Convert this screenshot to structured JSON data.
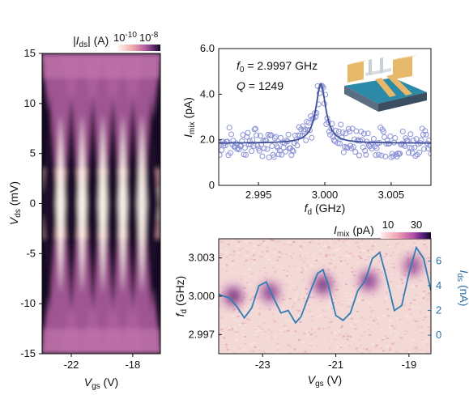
{
  "chart_data": [
    {
      "type": "heatmap",
      "panel": "left",
      "xlabel_main": "V",
      "xlabel_sub": "gs",
      "xlabel_unit": " (V)",
      "ylabel_main": "V",
      "ylabel_sub": "ds",
      "ylabel_unit": " (mV)",
      "xlim": [
        -23.9,
        -16.2
      ],
      "ylim": [
        -15,
        15
      ],
      "xticks": [
        "-22",
        "-18"
      ],
      "xtick_values": [
        -22,
        -18
      ],
      "yticks": [
        "15",
        "10",
        "5",
        "0",
        "-5",
        "-10",
        "-15"
      ],
      "ytick_values": [
        15,
        10,
        5,
        0,
        -5,
        -10,
        -15
      ],
      "colorbar": {
        "label_pre": "|I",
        "label_sub": "ds",
        "label_post": "| (A)",
        "tick_low": "10",
        "tick_low_exp": "-10",
        "tick_high": "10",
        "tick_high_exp": "-8",
        "scale": "log"
      },
      "diamond_centers_vgs": [
        -23.4,
        -22.0,
        -20.6,
        -19.3,
        -18.0,
        -16.8
      ],
      "diamond_half_height_mV": 11
    },
    {
      "type": "scatter",
      "panel": "top-right",
      "xlabel_main": "f",
      "xlabel_sub": "d",
      "xlabel_unit": " (GHz)",
      "ylabel_main": "I",
      "ylabel_sub": "mix",
      "ylabel_unit": " (pA)",
      "xlim": [
        2.992,
        3.008
      ],
      "ylim": [
        0,
        6
      ],
      "xticks": [
        "2.995",
        "3.000",
        "3.005"
      ],
      "xtick_values": [
        2.995,
        3.0,
        3.005
      ],
      "yticks": [
        "6.0",
        "4.0",
        "2.0",
        "0"
      ],
      "ytick_values": [
        6,
        4,
        2,
        0
      ],
      "annotation_f0": "f",
      "annotation_f0_sub": "0",
      "annotation_f0_val": " = 2.9997 GHz",
      "annotation_q": "Q",
      "annotation_q_val": " = 1249",
      "fit": {
        "f0": 2.9997,
        "baseline": 1.85,
        "peak": 2.6,
        "gamma": 0.00045
      },
      "series": [
        {
          "values_note": "open-circle data points scattered around Lorentzian fit"
        }
      ]
    },
    {
      "type": "heatmap",
      "panel": "bottom-right",
      "xlabel_main": "V",
      "xlabel_sub": "gs",
      "xlabel_unit": " (V)",
      "ylabel_main": "f",
      "ylabel_sub": "d",
      "ylabel_unit": " (GHz)",
      "y2label_main": "I",
      "y2label_sub": "ds",
      "y2label_unit": " (nA)",
      "xlim": [
        -24.2,
        -18.4
      ],
      "ylim": [
        2.9955,
        3.0045
      ],
      "y2lim": [
        -1.5,
        7.8
      ],
      "xticks": [
        "-23",
        "-21",
        "-19"
      ],
      "xtick_values": [
        -23,
        -21,
        -19
      ],
      "yticks": [
        "3.003",
        "3.000",
        "2.997"
      ],
      "ytick_values": [
        3.003,
        3.0,
        2.997
      ],
      "y2ticks": [
        "6",
        "4",
        "2",
        "0"
      ],
      "y2tick_values": [
        6,
        4,
        2,
        0
      ],
      "colorbar": {
        "label_main": "I",
        "label_sub": "mix",
        "label_unit": " (pA)",
        "tick_low": "10",
        "tick_high": "30"
      },
      "blobs": [
        {
          "vgs": -23.8,
          "fd": 3.0,
          "strength": 1.0
        },
        {
          "vgs": -22.8,
          "fd": 3.0003,
          "strength": 0.75
        },
        {
          "vgs": -21.35,
          "fd": 3.0009,
          "strength": 0.95
        },
        {
          "vgs": -20.1,
          "fd": 3.0012,
          "strength": 0.8
        },
        {
          "vgs": -18.9,
          "fd": 3.0024,
          "strength": 0.55
        }
      ],
      "ids_curve": {
        "vgs": [
          -24.2,
          -23.9,
          -23.7,
          -23.5,
          -23.3,
          -23.1,
          -22.9,
          -22.7,
          -22.5,
          -22.3,
          -22.1,
          -21.95,
          -21.7,
          -21.5,
          -21.35,
          -21.2,
          -21.0,
          -20.8,
          -20.6,
          -20.4,
          -20.2,
          -20.0,
          -19.8,
          -19.6,
          -19.4,
          -19.2,
          -19.0,
          -18.8,
          -18.6,
          -18.4
        ],
        "ids": [
          3.3,
          3.0,
          2.3,
          1.4,
          2.2,
          4.0,
          4.3,
          3.0,
          1.8,
          2.0,
          1.0,
          1.5,
          3.5,
          5.0,
          5.3,
          4.0,
          1.6,
          1.2,
          1.8,
          3.6,
          4.4,
          6.2,
          6.7,
          4.5,
          2.0,
          2.4,
          5.0,
          7.1,
          6.2,
          3.6
        ]
      }
    }
  ]
}
